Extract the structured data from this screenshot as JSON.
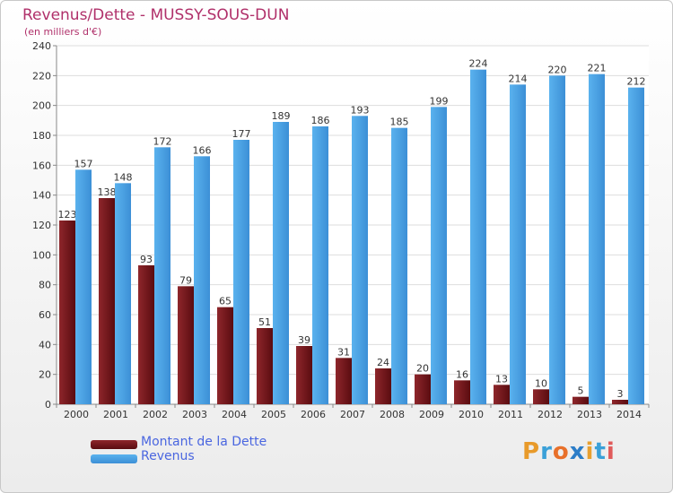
{
  "chart_data": {
    "type": "bar",
    "title": "Revenus/Dette - MUSSY-SOUS-DUN",
    "subtitle": "(en milliers d'€)",
    "xlabel": "",
    "ylabel": "",
    "ylim": [
      0,
      240
    ],
    "yticks": [
      0,
      20,
      40,
      60,
      80,
      100,
      120,
      140,
      160,
      180,
      200,
      220,
      240
    ],
    "grid": true,
    "legend_position": "bottom-left",
    "categories": [
      "2000",
      "2001",
      "2002",
      "2003",
      "2004",
      "2005",
      "2006",
      "2007",
      "2008",
      "2009",
      "2010",
      "2011",
      "2012",
      "2013",
      "2014"
    ],
    "series": [
      {
        "name": "Montant de la Dette",
        "color": "#7a1a1f",
        "values": [
          123,
          138,
          93,
          79,
          65,
          51,
          39,
          31,
          24,
          20,
          16,
          13,
          10,
          5,
          3
        ]
      },
      {
        "name": "Revenus",
        "color": "#4aa3e6",
        "values": [
          157,
          148,
          172,
          166,
          177,
          189,
          186,
          193,
          185,
          199,
          224,
          214,
          220,
          221,
          212
        ]
      }
    ]
  },
  "brand": {
    "letters": [
      "P",
      "r",
      "o",
      "x",
      "i",
      "t",
      "i"
    ],
    "colors": [
      "#e89a2a",
      "#3aa0d8",
      "#e8702a",
      "#2c7dc8",
      "#e8a030",
      "#3aa0d8",
      "#e05a5a"
    ]
  }
}
